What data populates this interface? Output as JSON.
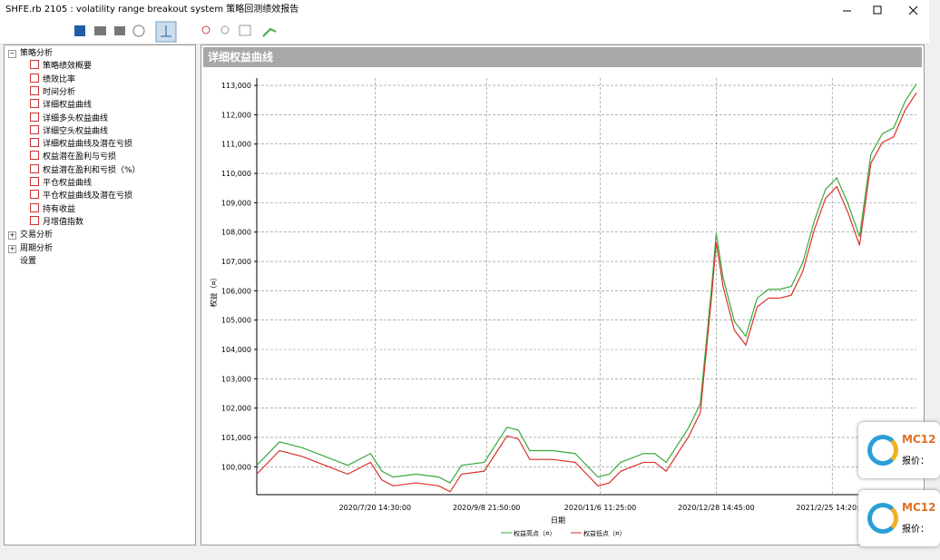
{
  "window": {
    "title": "SHFE.rb 2105 : volatility range breakout system 策略回测绩效报告"
  },
  "tree": [
    {
      "label": "策略分析",
      "children": [
        "策略绩效概要",
        "绩效比率",
        "时间分析",
        "详细权益曲线",
        "详细多头权益曲线",
        "详细空头权益曲线",
        "详细权益曲线及潜在亏损",
        "权益潜在盈利与亏损",
        "权益潜在盈利和亏损（%）",
        "平仓权益曲线",
        "平仓权益曲线及潜在亏损",
        "持有收益",
        "月增值指数"
      ]
    },
    {
      "label": "交易分析"
    },
    {
      "label": "周期分析"
    },
    {
      "label": "设置"
    }
  ],
  "panel_title": "详细权益曲线",
  "chart_data": {
    "type": "line",
    "x_label": "日期",
    "y_label": "权益（¤）",
    "x": [
      0,
      10,
      20,
      30,
      40,
      50,
      55,
      60,
      70,
      80,
      85,
      90,
      100,
      105,
      110,
      115,
      120,
      130,
      140,
      145,
      150,
      155,
      160,
      170,
      175,
      180,
      185,
      190,
      195,
      200,
      202,
      205,
      210,
      215,
      220,
      225,
      230,
      235,
      240,
      245,
      250,
      255,
      260,
      265,
      270,
      275,
      280,
      285,
      290
    ],
    "series": [
      {
        "name": "权益高点（¤）",
        "color": "#3aa83a",
        "values": [
          100050,
          100850,
          100650,
          100350,
          100050,
          100450,
          99850,
          99650,
          99750,
          99650,
          99450,
          100050,
          100150,
          100750,
          101350,
          101250,
          100550,
          100550,
          100450,
          100050,
          99650,
          99750,
          100150,
          100450,
          100450,
          100150,
          100750,
          101350,
          102150,
          106150,
          107950,
          106450,
          104950,
          104450,
          105750,
          106050,
          106050,
          106150,
          106950,
          108350,
          109450,
          109850,
          108950,
          107850,
          110650,
          111350,
          111550,
          112450,
          113050
        ]
      },
      {
        "name": "权益低点（¤）",
        "color": "#d8322a",
        "values": [
          99750,
          100550,
          100350,
          100050,
          99750,
          100150,
          99550,
          99350,
          99450,
          99350,
          99150,
          99750,
          99850,
          100450,
          101050,
          100950,
          100250,
          100250,
          100150,
          99750,
          99350,
          99450,
          99850,
          100150,
          100150,
          99850,
          100450,
          101050,
          101850,
          105850,
          107650,
          106150,
          104650,
          104150,
          105450,
          105750,
          105750,
          105850,
          106650,
          108050,
          109150,
          109550,
          108650,
          107550,
          110350,
          111050,
          111250,
          112150,
          112750
        ]
      }
    ],
    "xlim": [
      0,
      290
    ],
    "xticks": [
      {
        "value": 52,
        "label": "2020/7/20 14:30:00"
      },
      {
        "value": 101,
        "label": "2020/9/8 21:50:00"
      },
      {
        "value": 151,
        "label": "2020/11/6 11:25:00"
      },
      {
        "value": 202,
        "label": "2020/12/28 14:45:00"
      },
      {
        "value": 253,
        "label": "2021/2/25 14:20:00"
      }
    ],
    "ylim": [
      99050,
      113250
    ],
    "yticks": [
      {
        "value": 100000,
        "label": "100,000"
      },
      {
        "value": 101000,
        "label": "101,000"
      },
      {
        "value": 102000,
        "label": "102,000"
      },
      {
        "value": 103000,
        "label": "103,000"
      },
      {
        "value": 104000,
        "label": "104,000"
      },
      {
        "value": 105000,
        "label": "105,000"
      },
      {
        "value": 106000,
        "label": "106,000"
      },
      {
        "value": 107000,
        "label": "107,000"
      },
      {
        "value": 108000,
        "label": "108,000"
      },
      {
        "value": 109000,
        "label": "109,000"
      },
      {
        "value": 110000,
        "label": "110,000"
      },
      {
        "value": 111000,
        "label": "111,000"
      },
      {
        "value": 112000,
        "label": "112,000"
      },
      {
        "value": 113000,
        "label": "113,000"
      }
    ],
    "grid": true
  },
  "notifications": [
    {
      "title": "MC12",
      "text": "报价："
    },
    {
      "title": "MC12",
      "text": "报价："
    }
  ]
}
